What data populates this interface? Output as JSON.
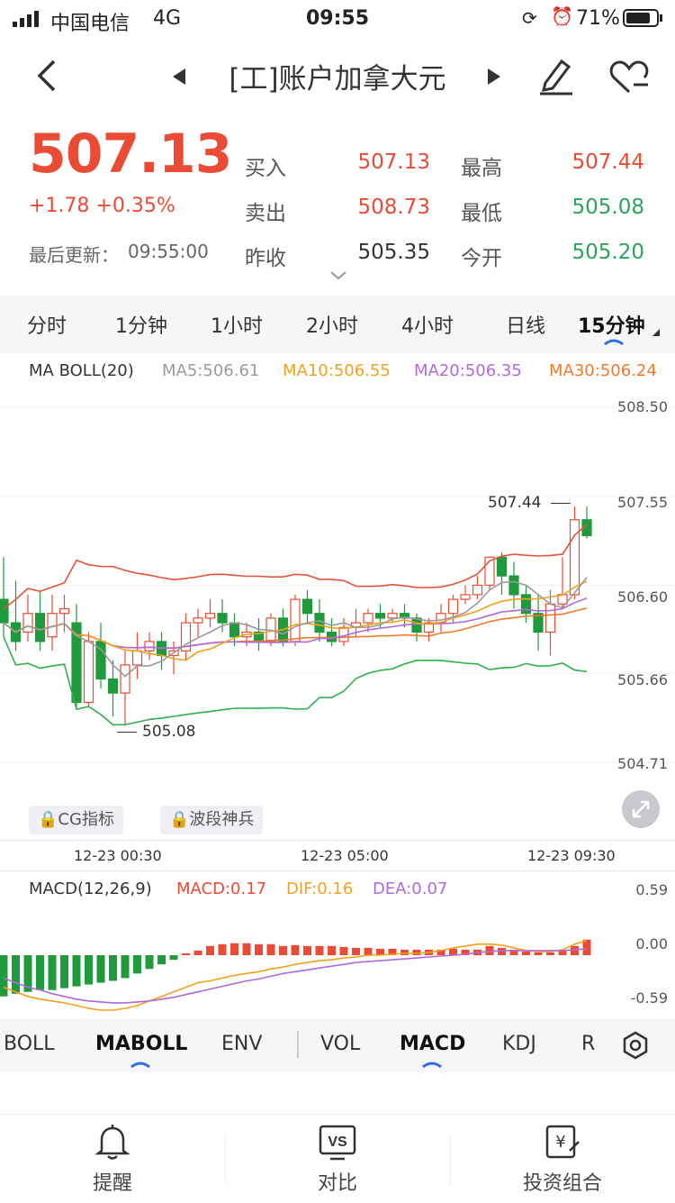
{
  "status": {
    "carrier": "中国电信",
    "network": "4G",
    "time": "09:55",
    "battery": "71%"
  },
  "nav": {
    "title": "[工]账户加拿大元"
  },
  "quote": {
    "price": "507.13",
    "change": "+1.78 +0.35%",
    "update_label": "最后更新：",
    "update_time": "09:55:00",
    "buy_label": "买入",
    "buy": "507.13",
    "sell_label": "卖出",
    "sell": "508.73",
    "prev_label": "昨收",
    "prev": "505.35",
    "high_label": "最高",
    "high": "507.44",
    "low_label": "最低",
    "low": "505.08",
    "open_label": "今开",
    "open": "505.20"
  },
  "tabs": [
    "分时",
    "1分钟",
    "1小时",
    "2小时",
    "4小时",
    "日线",
    "15分钟"
  ],
  "main_legend": {
    "name": "MA BOLL(20)",
    "ma5": "MA5:506.61",
    "ma10": "MA10:506.55",
    "ma20": "MA20:506.35",
    "ma30": "MA30:506.24"
  },
  "main_axis": [
    "508.50",
    "507.55",
    "506.60",
    "505.66",
    "504.71"
  ],
  "markers": {
    "high": "507.44",
    "low": "505.08"
  },
  "chips": [
    "CG指标",
    "波段神兵"
  ],
  "time_labels": [
    "12-23 00:30",
    "12-23 05:00",
    "12-23 09:30"
  ],
  "macd_legend": {
    "name": "MACD(12,26,9)",
    "macd": "MACD:0.17",
    "dif": "DIF:0.16",
    "dea": "DEA:0.07"
  },
  "macd_axis": [
    "0.59",
    "0.00",
    "-0.59"
  ],
  "indicators_left": [
    "BOLL",
    "MABOLL",
    "ENV"
  ],
  "indicators_right": [
    "VOL",
    "MACD",
    "KDJ",
    "R"
  ],
  "bottom": [
    "提醒",
    "对比",
    "投资组合"
  ],
  "colors": {
    "up": "#e94b35",
    "down": "#1f9a3d",
    "ma5": "#9a9a9a",
    "ma10": "#f0a21c",
    "ma20": "#b06ad8",
    "ma30": "#f07a2a",
    "accent": "#2f6fde"
  },
  "chart_data": [
    {
      "type": "candlestick",
      "title": "",
      "ylim": [
        504.71,
        508.5
      ],
      "y_ticks": [
        508.5,
        507.55,
        506.6,
        505.66,
        504.71
      ],
      "x_tick_labels": [
        "12-23 00:30",
        "12-23 05:00",
        "12-23 09:30"
      ],
      "candles": [
        {
          "o": 506.45,
          "h": 506.9,
          "c": 506.2,
          "l": 506.05
        },
        {
          "o": 506.2,
          "h": 506.65,
          "c": 506.0,
          "l": 505.9
        },
        {
          "o": 506.1,
          "h": 506.5,
          "c": 506.3,
          "l": 506.0
        },
        {
          "o": 506.3,
          "h": 506.55,
          "c": 506.0,
          "l": 505.9
        },
        {
          "o": 506.05,
          "h": 506.5,
          "c": 506.3,
          "l": 505.9
        },
        {
          "o": 506.3,
          "h": 506.5,
          "c": 506.35,
          "l": 506.1
        },
        {
          "o": 506.2,
          "h": 506.4,
          "c": 505.35,
          "l": 505.3
        },
        {
          "o": 505.35,
          "h": 506.1,
          "c": 506.0,
          "l": 505.3
        },
        {
          "o": 506.0,
          "h": 506.2,
          "c": 505.6,
          "l": 505.5
        },
        {
          "o": 505.6,
          "h": 505.8,
          "c": 505.45,
          "l": 505.2
        },
        {
          "o": 505.45,
          "h": 505.9,
          "c": 505.75,
          "l": 505.1
        },
        {
          "o": 505.75,
          "h": 506.1,
          "c": 505.9,
          "l": 505.6
        },
        {
          "o": 505.9,
          "h": 506.1,
          "c": 506.0,
          "l": 505.8
        },
        {
          "o": 506.0,
          "h": 506.1,
          "c": 505.85,
          "l": 505.7
        },
        {
          "o": 505.85,
          "h": 506.0,
          "c": 505.9,
          "l": 505.65
        },
        {
          "o": 505.9,
          "h": 506.3,
          "c": 506.2,
          "l": 505.8
        },
        {
          "o": 506.2,
          "h": 506.35,
          "c": 506.25,
          "l": 506.05
        },
        {
          "o": 506.25,
          "h": 506.45,
          "c": 506.3,
          "l": 506.15
        },
        {
          "o": 506.3,
          "h": 506.45,
          "c": 506.2,
          "l": 506.1
        },
        {
          "o": 506.2,
          "h": 506.3,
          "c": 506.05,
          "l": 505.95
        },
        {
          "o": 506.05,
          "h": 506.2,
          "c": 506.1,
          "l": 505.95
        },
        {
          "o": 506.1,
          "h": 506.25,
          "c": 506.0,
          "l": 505.9
        },
        {
          "o": 506.0,
          "h": 506.3,
          "c": 506.25,
          "l": 505.95
        },
        {
          "o": 506.25,
          "h": 506.35,
          "c": 506.0,
          "l": 505.95
        },
        {
          "o": 506.0,
          "h": 506.5,
          "c": 506.45,
          "l": 505.95
        },
        {
          "o": 506.45,
          "h": 506.55,
          "c": 506.3,
          "l": 506.2
        },
        {
          "o": 506.3,
          "h": 506.45,
          "c": 506.1,
          "l": 506.0
        },
        {
          "o": 506.1,
          "h": 506.25,
          "c": 506.0,
          "l": 505.95
        },
        {
          "o": 506.0,
          "h": 506.25,
          "c": 506.15,
          "l": 505.95
        },
        {
          "o": 506.15,
          "h": 506.35,
          "c": 506.2,
          "l": 506.05
        },
        {
          "o": 506.2,
          "h": 506.35,
          "c": 506.3,
          "l": 506.1
        },
        {
          "o": 506.3,
          "h": 506.4,
          "c": 506.25,
          "l": 506.15
        },
        {
          "o": 506.25,
          "h": 506.35,
          "c": 506.3,
          "l": 506.2
        },
        {
          "o": 506.3,
          "h": 506.4,
          "c": 506.25,
          "l": 506.15
        },
        {
          "o": 506.25,
          "h": 506.3,
          "c": 506.1,
          "l": 506.0
        },
        {
          "o": 506.1,
          "h": 506.25,
          "c": 506.2,
          "l": 506.0
        },
        {
          "o": 506.2,
          "h": 506.4,
          "c": 506.3,
          "l": 506.1
        },
        {
          "o": 506.3,
          "h": 506.5,
          "c": 506.45,
          "l": 506.2
        },
        {
          "o": 506.45,
          "h": 506.6,
          "c": 506.5,
          "l": 506.4
        },
        {
          "o": 506.5,
          "h": 506.7,
          "c": 506.6,
          "l": 506.45
        },
        {
          "o": 506.6,
          "h": 506.9,
          "c": 506.9,
          "l": 506.55
        },
        {
          "o": 506.9,
          "h": 506.95,
          "c": 506.7,
          "l": 506.5
        },
        {
          "o": 506.7,
          "h": 506.85,
          "c": 506.5,
          "l": 506.35
        },
        {
          "o": 506.5,
          "h": 506.6,
          "c": 506.3,
          "l": 506.2
        },
        {
          "o": 506.3,
          "h": 506.5,
          "c": 506.1,
          "l": 505.9
        },
        {
          "o": 506.1,
          "h": 506.55,
          "c": 506.4,
          "l": 505.85
        },
        {
          "o": 506.4,
          "h": 506.9,
          "c": 506.5,
          "l": 506.35
        },
        {
          "o": 506.5,
          "h": 507.44,
          "c": 507.3,
          "l": 506.45
        },
        {
          "o": 507.3,
          "h": 507.44,
          "c": 507.13,
          "l": 507.1
        }
      ]
    },
    {
      "type": "bar",
      "title": "",
      "ylim": [
        -0.59,
        0.59
      ],
      "y_ticks": [
        0.59,
        0.0,
        -0.59
      ],
      "macd_hist": [
        -0.45,
        -0.42,
        -0.4,
        -0.38,
        -0.38,
        -0.36,
        -0.34,
        -0.32,
        -0.3,
        -0.28,
        -0.25,
        -0.2,
        -0.15,
        -0.1,
        -0.05,
        0.02,
        0.05,
        0.1,
        0.12,
        0.13,
        0.13,
        0.12,
        0.12,
        0.1,
        0.11,
        0.1,
        0.1,
        0.1,
        0.09,
        0.08,
        0.08,
        0.07,
        0.07,
        0.06,
        0.06,
        0.06,
        0.06,
        0.07,
        0.06,
        0.06,
        0.1,
        0.08,
        0.06,
        0.04,
        0.03,
        0.03,
        0.05,
        0.1,
        0.17
      ],
      "series": [
        {
          "name": "DIF",
          "values": [
            -0.35,
            -0.4,
            -0.45,
            -0.48,
            -0.5,
            -0.52,
            -0.55,
            -0.58,
            -0.6,
            -0.6,
            -0.58,
            -0.55,
            -0.5,
            -0.45,
            -0.4,
            -0.35,
            -0.3,
            -0.28,
            -0.25,
            -0.22,
            -0.2,
            -0.18,
            -0.15,
            -0.13,
            -0.1,
            -0.08,
            -0.06,
            -0.05,
            -0.03,
            -0.02,
            0.0,
            0.0,
            0.01,
            0.02,
            0.02,
            0.03,
            0.05,
            0.08,
            0.1,
            0.12,
            0.12,
            0.11,
            0.08,
            0.05,
            0.04,
            0.04,
            0.06,
            0.12,
            0.16
          ]
        },
        {
          "name": "DEA",
          "values": [
            -0.25,
            -0.3,
            -0.35,
            -0.38,
            -0.42,
            -0.45,
            -0.48,
            -0.5,
            -0.51,
            -0.52,
            -0.52,
            -0.51,
            -0.5,
            -0.48,
            -0.46,
            -0.43,
            -0.4,
            -0.37,
            -0.34,
            -0.31,
            -0.28,
            -0.26,
            -0.23,
            -0.2,
            -0.18,
            -0.16,
            -0.14,
            -0.12,
            -0.1,
            -0.08,
            -0.07,
            -0.06,
            -0.05,
            -0.04,
            -0.03,
            -0.02,
            -0.01,
            0.0,
            0.01,
            0.03,
            0.04,
            0.05,
            0.05,
            0.05,
            0.05,
            0.05,
            0.05,
            0.06,
            0.07
          ]
        }
      ]
    }
  ]
}
